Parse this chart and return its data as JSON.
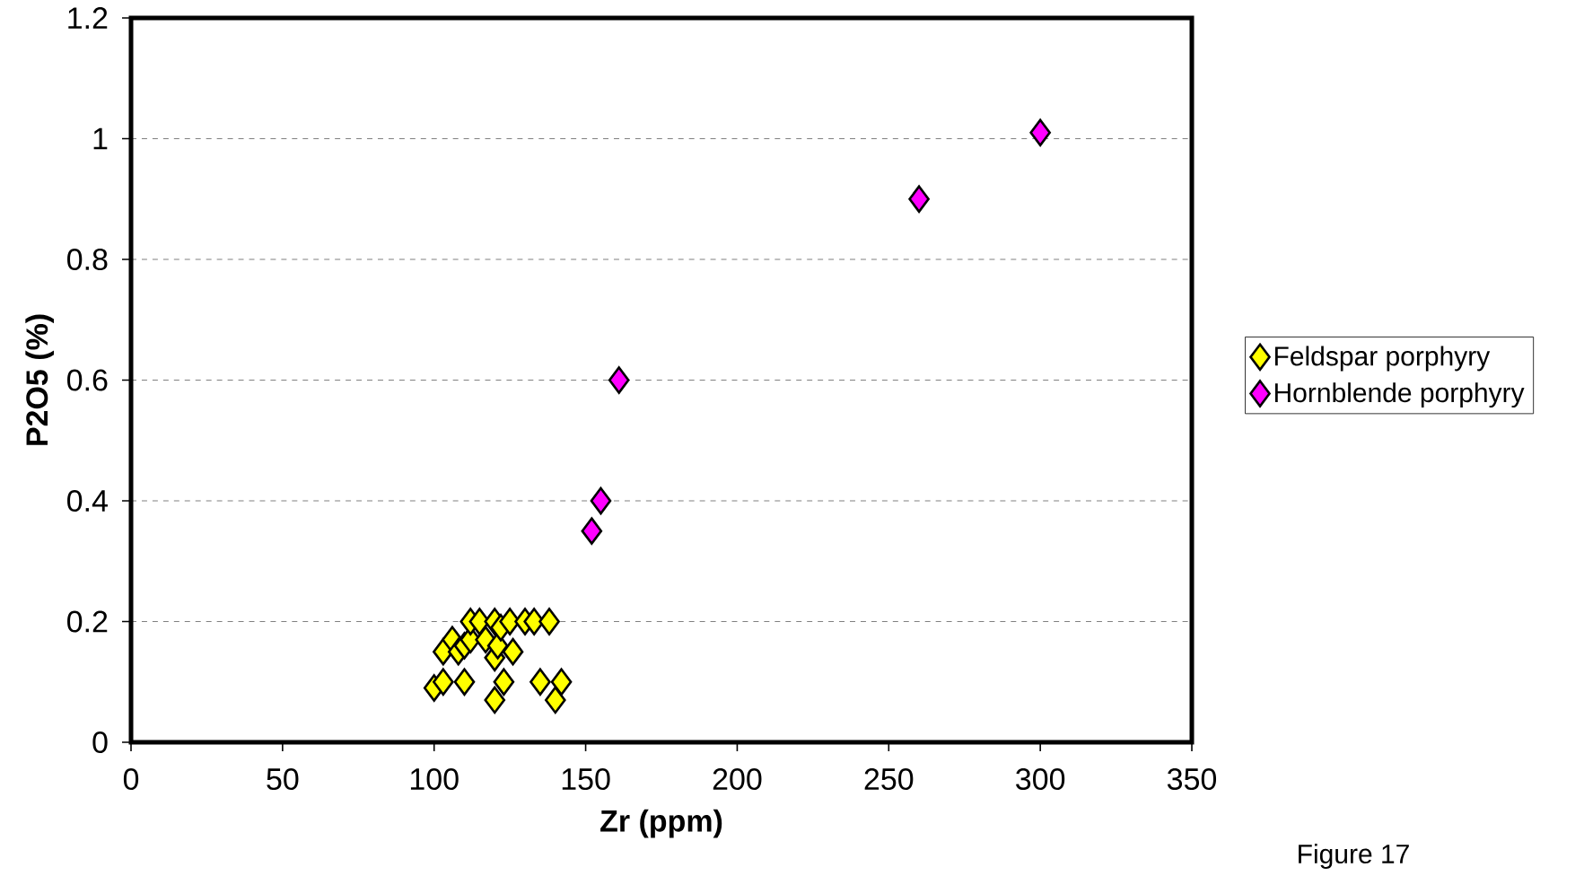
{
  "chart_data": {
    "type": "scatter",
    "xlabel": "Zr (ppm)",
    "ylabel": "P2O5 (%)",
    "annotations": [
      "Figure 17"
    ],
    "xlim": [
      0,
      350
    ],
    "xticks": [
      0,
      50,
      100,
      150,
      200,
      250,
      300,
      350
    ],
    "ylim": [
      0,
      1.2
    ],
    "yticks": [
      0,
      0.2,
      0.4,
      0.6,
      0.8,
      1,
      1.2
    ],
    "grid": "y",
    "legend": "right",
    "marker": "diamond",
    "series": [
      {
        "name": "Feldspar porphyry",
        "color": "#ffff00",
        "x": [
          100,
          103,
          110,
          123,
          120,
          135,
          140,
          142,
          103,
          106,
          108,
          110,
          112,
          117,
          120,
          121,
          126,
          112,
          115,
          120,
          122,
          125,
          130,
          133,
          138
        ],
        "values": [
          0.09,
          0.1,
          0.1,
          0.1,
          0.07,
          0.1,
          0.07,
          0.1,
          0.15,
          0.17,
          0.15,
          0.16,
          0.17,
          0.17,
          0.14,
          0.16,
          0.15,
          0.2,
          0.2,
          0.2,
          0.19,
          0.2,
          0.2,
          0.2,
          0.2
        ]
      },
      {
        "name": "Hornblende porphyry",
        "color": "#ff00ff",
        "x": [
          152,
          155,
          161,
          260,
          300
        ],
        "values": [
          0.35,
          0.4,
          0.6,
          0.9,
          1.01
        ]
      }
    ]
  }
}
